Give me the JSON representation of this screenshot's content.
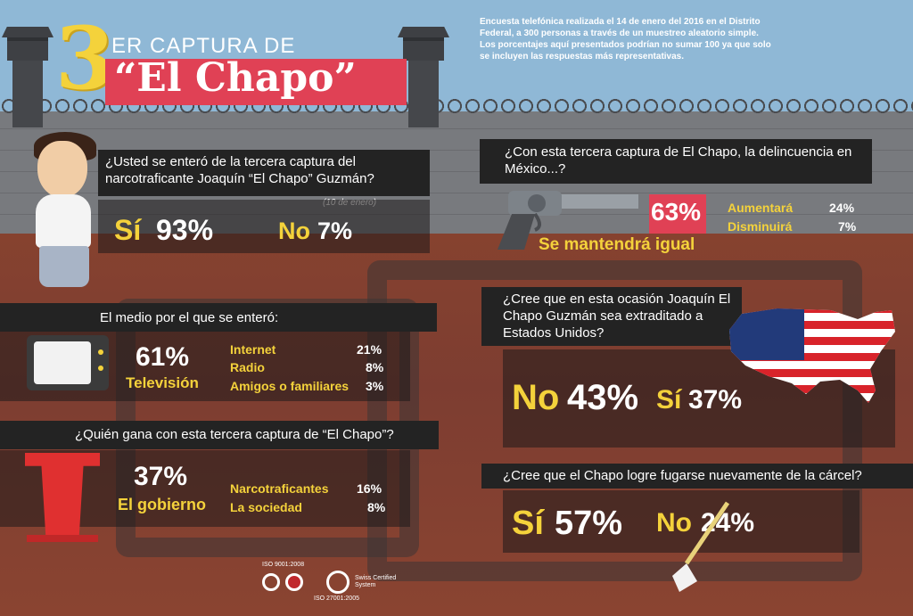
{
  "header": {
    "number": "3",
    "line1": "ER CAPTURA DE",
    "line2": "“El Chapo”",
    "note": "Encuesta telefónica realizada el 14 de enero del 2016 en el Distrito Federal, a 300 personas a través de un muestreo aleatorio simple. Los porcentajes aquí presentados podrían no sumar 100 ya que solo se incluyen las respuestas más representativas."
  },
  "q1": {
    "question": "¿Usted se enteró de la tercera captura del narcotraficante Joaquín “El Chapo” Guzmán?",
    "date": "(10 de enero)",
    "yes_label": "Sí",
    "yes_value": "93%",
    "no_label": "No",
    "no_value": "7%"
  },
  "q2": {
    "question": "El medio por el que se enteró:",
    "main_value": "61%",
    "main_label": "Televisión",
    "others": [
      {
        "label": "Internet",
        "value": "21%"
      },
      {
        "label": "Radio",
        "value": "8%"
      },
      {
        "label": "Amigos o familiares",
        "value": "3%"
      }
    ]
  },
  "q3": {
    "question": "¿Quién gana con esta tercera captura de “El Chapo”?",
    "main_value": "37%",
    "main_label": "El gobierno",
    "others": [
      {
        "label": "Narcotraficantes",
        "value": "16%"
      },
      {
        "label": "La sociedad",
        "value": "8%"
      }
    ]
  },
  "q4": {
    "question": "¿Con esta tercera captura de El Chapo, la delincuencia en México...?",
    "main_value": "63%",
    "main_label": "Se mantendrá igual",
    "others": [
      {
        "label": "Aumentará",
        "value": "24%"
      },
      {
        "label": "Disminuirá",
        "value": "7%"
      }
    ]
  },
  "q5": {
    "question": "¿Cree que en esta ocasión Joaquín El Chapo Guzmán sea extraditado a Estados Unidos?",
    "no_label": "No",
    "no_value": "43%",
    "yes_label": "Sí",
    "yes_value": "37%"
  },
  "q6": {
    "question": "¿Cree que el Chapo logre fugarse nuevamente de la cárcel?",
    "yes_label": "Sí",
    "yes_value": "57%",
    "no_label": "No",
    "no_value": "24%"
  },
  "footer": {
    "iso1": "ISO 9001:2008",
    "iso2": "ISO 27001:2005",
    "swiss": "Swiss Certified System"
  },
  "colors": {
    "accent_yellow": "#f4d23b",
    "accent_red": "#e04155",
    "dark_bar": "#232323"
  }
}
